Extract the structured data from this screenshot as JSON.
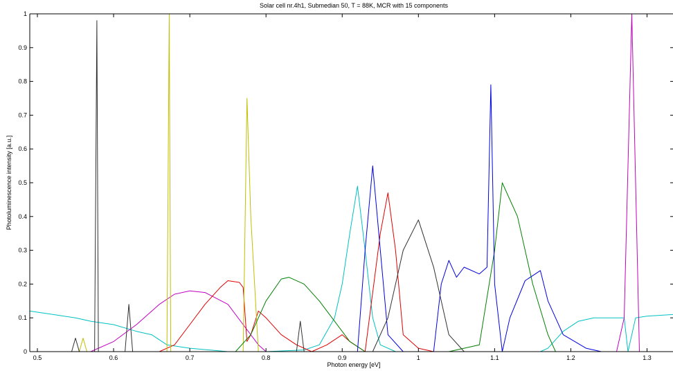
{
  "chart_data": {
    "type": "line",
    "title": "Solar cell nr.4h1, Submedian 50, T = 88K, MCR with 15 components",
    "xlabel": "Photon energy [eV]",
    "ylabel": "Photoluminescence intensity [a.u.]",
    "xlim": [
      0.49,
      1.335
    ],
    "ylim": [
      0,
      1
    ],
    "xticks": [
      "0.5",
      "0.6",
      "0.7",
      "0.8",
      "0.9",
      "1",
      "1.1",
      "1.2",
      "1.3"
    ],
    "yticks": [
      "0",
      "0.1",
      "0.2",
      "0.3",
      "0.4",
      "0.5",
      "0.6",
      "0.7",
      "0.8",
      "0.9",
      "1"
    ],
    "grid": false,
    "legend": "none",
    "series": [
      {
        "color": "#00c0c0",
        "points": [
          [
            0.49,
            0.12
          ],
          [
            0.52,
            0.11
          ],
          [
            0.55,
            0.1
          ],
          [
            0.57,
            0.09
          ],
          [
            0.6,
            0.08
          ],
          [
            0.63,
            0.06
          ],
          [
            0.65,
            0.05
          ],
          [
            0.67,
            0.02
          ],
          [
            0.7,
            0.01
          ],
          [
            0.75,
            0.0
          ],
          [
            0.8,
            0.0
          ],
          [
            0.85,
            0.005
          ],
          [
            0.87,
            0.02
          ],
          [
            0.89,
            0.1
          ],
          [
            0.9,
            0.2
          ],
          [
            0.91,
            0.35
          ],
          [
            0.92,
            0.49
          ],
          [
            0.93,
            0.3
          ],
          [
            0.94,
            0.1
          ],
          [
            0.95,
            0.02
          ],
          [
            0.97,
            0.0
          ],
          [
            1.1,
            0.0
          ],
          [
            1.16,
            0.0
          ],
          [
            1.17,
            0.01
          ],
          [
            1.19,
            0.06
          ],
          [
            1.21,
            0.09
          ],
          [
            1.23,
            0.1
          ],
          [
            1.26,
            0.1
          ],
          [
            1.27,
            0.1
          ],
          [
            1.275,
            0.0
          ],
          [
            1.285,
            0.1
          ],
          [
            1.3,
            0.105
          ],
          [
            1.335,
            0.11
          ]
        ]
      },
      {
        "color": "#c000c0",
        "points": [
          [
            0.49,
            0.0
          ],
          [
            0.57,
            0.0
          ],
          [
            0.6,
            0.03
          ],
          [
            0.63,
            0.08
          ],
          [
            0.66,
            0.14
          ],
          [
            0.68,
            0.17
          ],
          [
            0.7,
            0.18
          ],
          [
            0.72,
            0.175
          ],
          [
            0.75,
            0.14
          ],
          [
            0.77,
            0.08
          ],
          [
            0.79,
            0.02
          ],
          [
            0.8,
            0.0
          ],
          [
            1.26,
            0.0
          ],
          [
            1.27,
            0.1
          ],
          [
            1.28,
            1.0
          ],
          [
            1.285,
            0.5
          ],
          [
            1.29,
            0.0
          ],
          [
            1.335,
            0.0
          ]
        ]
      },
      {
        "color": "#e00000",
        "points": [
          [
            0.49,
            0.0
          ],
          [
            0.66,
            0.0
          ],
          [
            0.68,
            0.02
          ],
          [
            0.7,
            0.08
          ],
          [
            0.72,
            0.14
          ],
          [
            0.74,
            0.19
          ],
          [
            0.75,
            0.21
          ],
          [
            0.765,
            0.205
          ],
          [
            0.77,
            0.19
          ],
          [
            0.775,
            0.03
          ],
          [
            0.78,
            0.05
          ],
          [
            0.79,
            0.12
          ],
          [
            0.8,
            0.1
          ],
          [
            0.82,
            0.05
          ],
          [
            0.84,
            0.02
          ],
          [
            0.86,
            0.0
          ],
          [
            0.88,
            0.02
          ],
          [
            0.9,
            0.05
          ],
          [
            0.91,
            0.03
          ],
          [
            0.93,
            0.0
          ],
          [
            0.95,
            0.35
          ],
          [
            0.96,
            0.47
          ],
          [
            0.97,
            0.3
          ],
          [
            0.98,
            0.05
          ],
          [
            1.0,
            0.01
          ],
          [
            1.02,
            0.0
          ],
          [
            1.335,
            0.0
          ]
        ]
      },
      {
        "color": "#c0c000",
        "points": [
          [
            0.49,
            0.0
          ],
          [
            0.555,
            0.0
          ],
          [
            0.56,
            0.04
          ],
          [
            0.565,
            0.0
          ],
          [
            0.67,
            0.0
          ],
          [
            0.673,
            1.0
          ],
          [
            0.675,
            0.0
          ],
          [
            0.77,
            0.0
          ],
          [
            0.775,
            0.75
          ],
          [
            0.78,
            0.4
          ],
          [
            0.79,
            0.0
          ],
          [
            1.335,
            0.0
          ]
        ]
      },
      {
        "color": "#008000",
        "points": [
          [
            0.49,
            0.0
          ],
          [
            0.76,
            0.0
          ],
          [
            0.78,
            0.05
          ],
          [
            0.8,
            0.15
          ],
          [
            0.82,
            0.215
          ],
          [
            0.83,
            0.22
          ],
          [
            0.85,
            0.2
          ],
          [
            0.87,
            0.15
          ],
          [
            0.89,
            0.09
          ],
          [
            0.91,
            0.03
          ],
          [
            0.93,
            0.0
          ],
          [
            1.04,
            0.0
          ],
          [
            1.06,
            0.01
          ],
          [
            1.08,
            0.02
          ],
          [
            1.1,
            0.3
          ],
          [
            1.11,
            0.5
          ],
          [
            1.13,
            0.4
          ],
          [
            1.15,
            0.2
          ],
          [
            1.17,
            0.05
          ],
          [
            1.18,
            0.0
          ],
          [
            1.335,
            0.0
          ]
        ]
      },
      {
        "color": "#0000e0",
        "points": [
          [
            0.49,
            0.0
          ],
          [
            0.92,
            0.0
          ],
          [
            0.93,
            0.3
          ],
          [
            0.94,
            0.55
          ],
          [
            0.95,
            0.3
          ],
          [
            0.96,
            0.05
          ],
          [
            0.98,
            0.0
          ],
          [
            1.02,
            0.0
          ],
          [
            1.03,
            0.2
          ],
          [
            1.04,
            0.27
          ],
          [
            1.05,
            0.22
          ],
          [
            1.06,
            0.25
          ],
          [
            1.08,
            0.23
          ],
          [
            1.09,
            0.25
          ],
          [
            1.095,
            0.79
          ],
          [
            1.1,
            0.2
          ],
          [
            1.11,
            0.0
          ],
          [
            1.12,
            0.1
          ],
          [
            1.14,
            0.21
          ],
          [
            1.16,
            0.24
          ],
          [
            1.17,
            0.15
          ],
          [
            1.19,
            0.05
          ],
          [
            1.22,
            0.01
          ],
          [
            1.24,
            0.0
          ],
          [
            1.335,
            0.0
          ]
        ]
      },
      {
        "color": "#303030",
        "points": [
          [
            0.49,
            0.0
          ],
          [
            0.545,
            0.0
          ],
          [
            0.55,
            0.04
          ],
          [
            0.555,
            0.0
          ],
          [
            0.575,
            0.0
          ],
          [
            0.578,
            0.98
          ],
          [
            0.58,
            0.0
          ],
          [
            0.615,
            0.0
          ],
          [
            0.62,
            0.14
          ],
          [
            0.625,
            0.0
          ],
          [
            0.84,
            0.0
          ],
          [
            0.845,
            0.09
          ],
          [
            0.85,
            0.0
          ],
          [
            0.94,
            0.0
          ],
          [
            0.96,
            0.1
          ],
          [
            0.98,
            0.3
          ],
          [
            1.0,
            0.39
          ],
          [
            1.02,
            0.25
          ],
          [
            1.04,
            0.05
          ],
          [
            1.06,
            0.0
          ],
          [
            1.335,
            0.0
          ]
        ]
      }
    ]
  }
}
